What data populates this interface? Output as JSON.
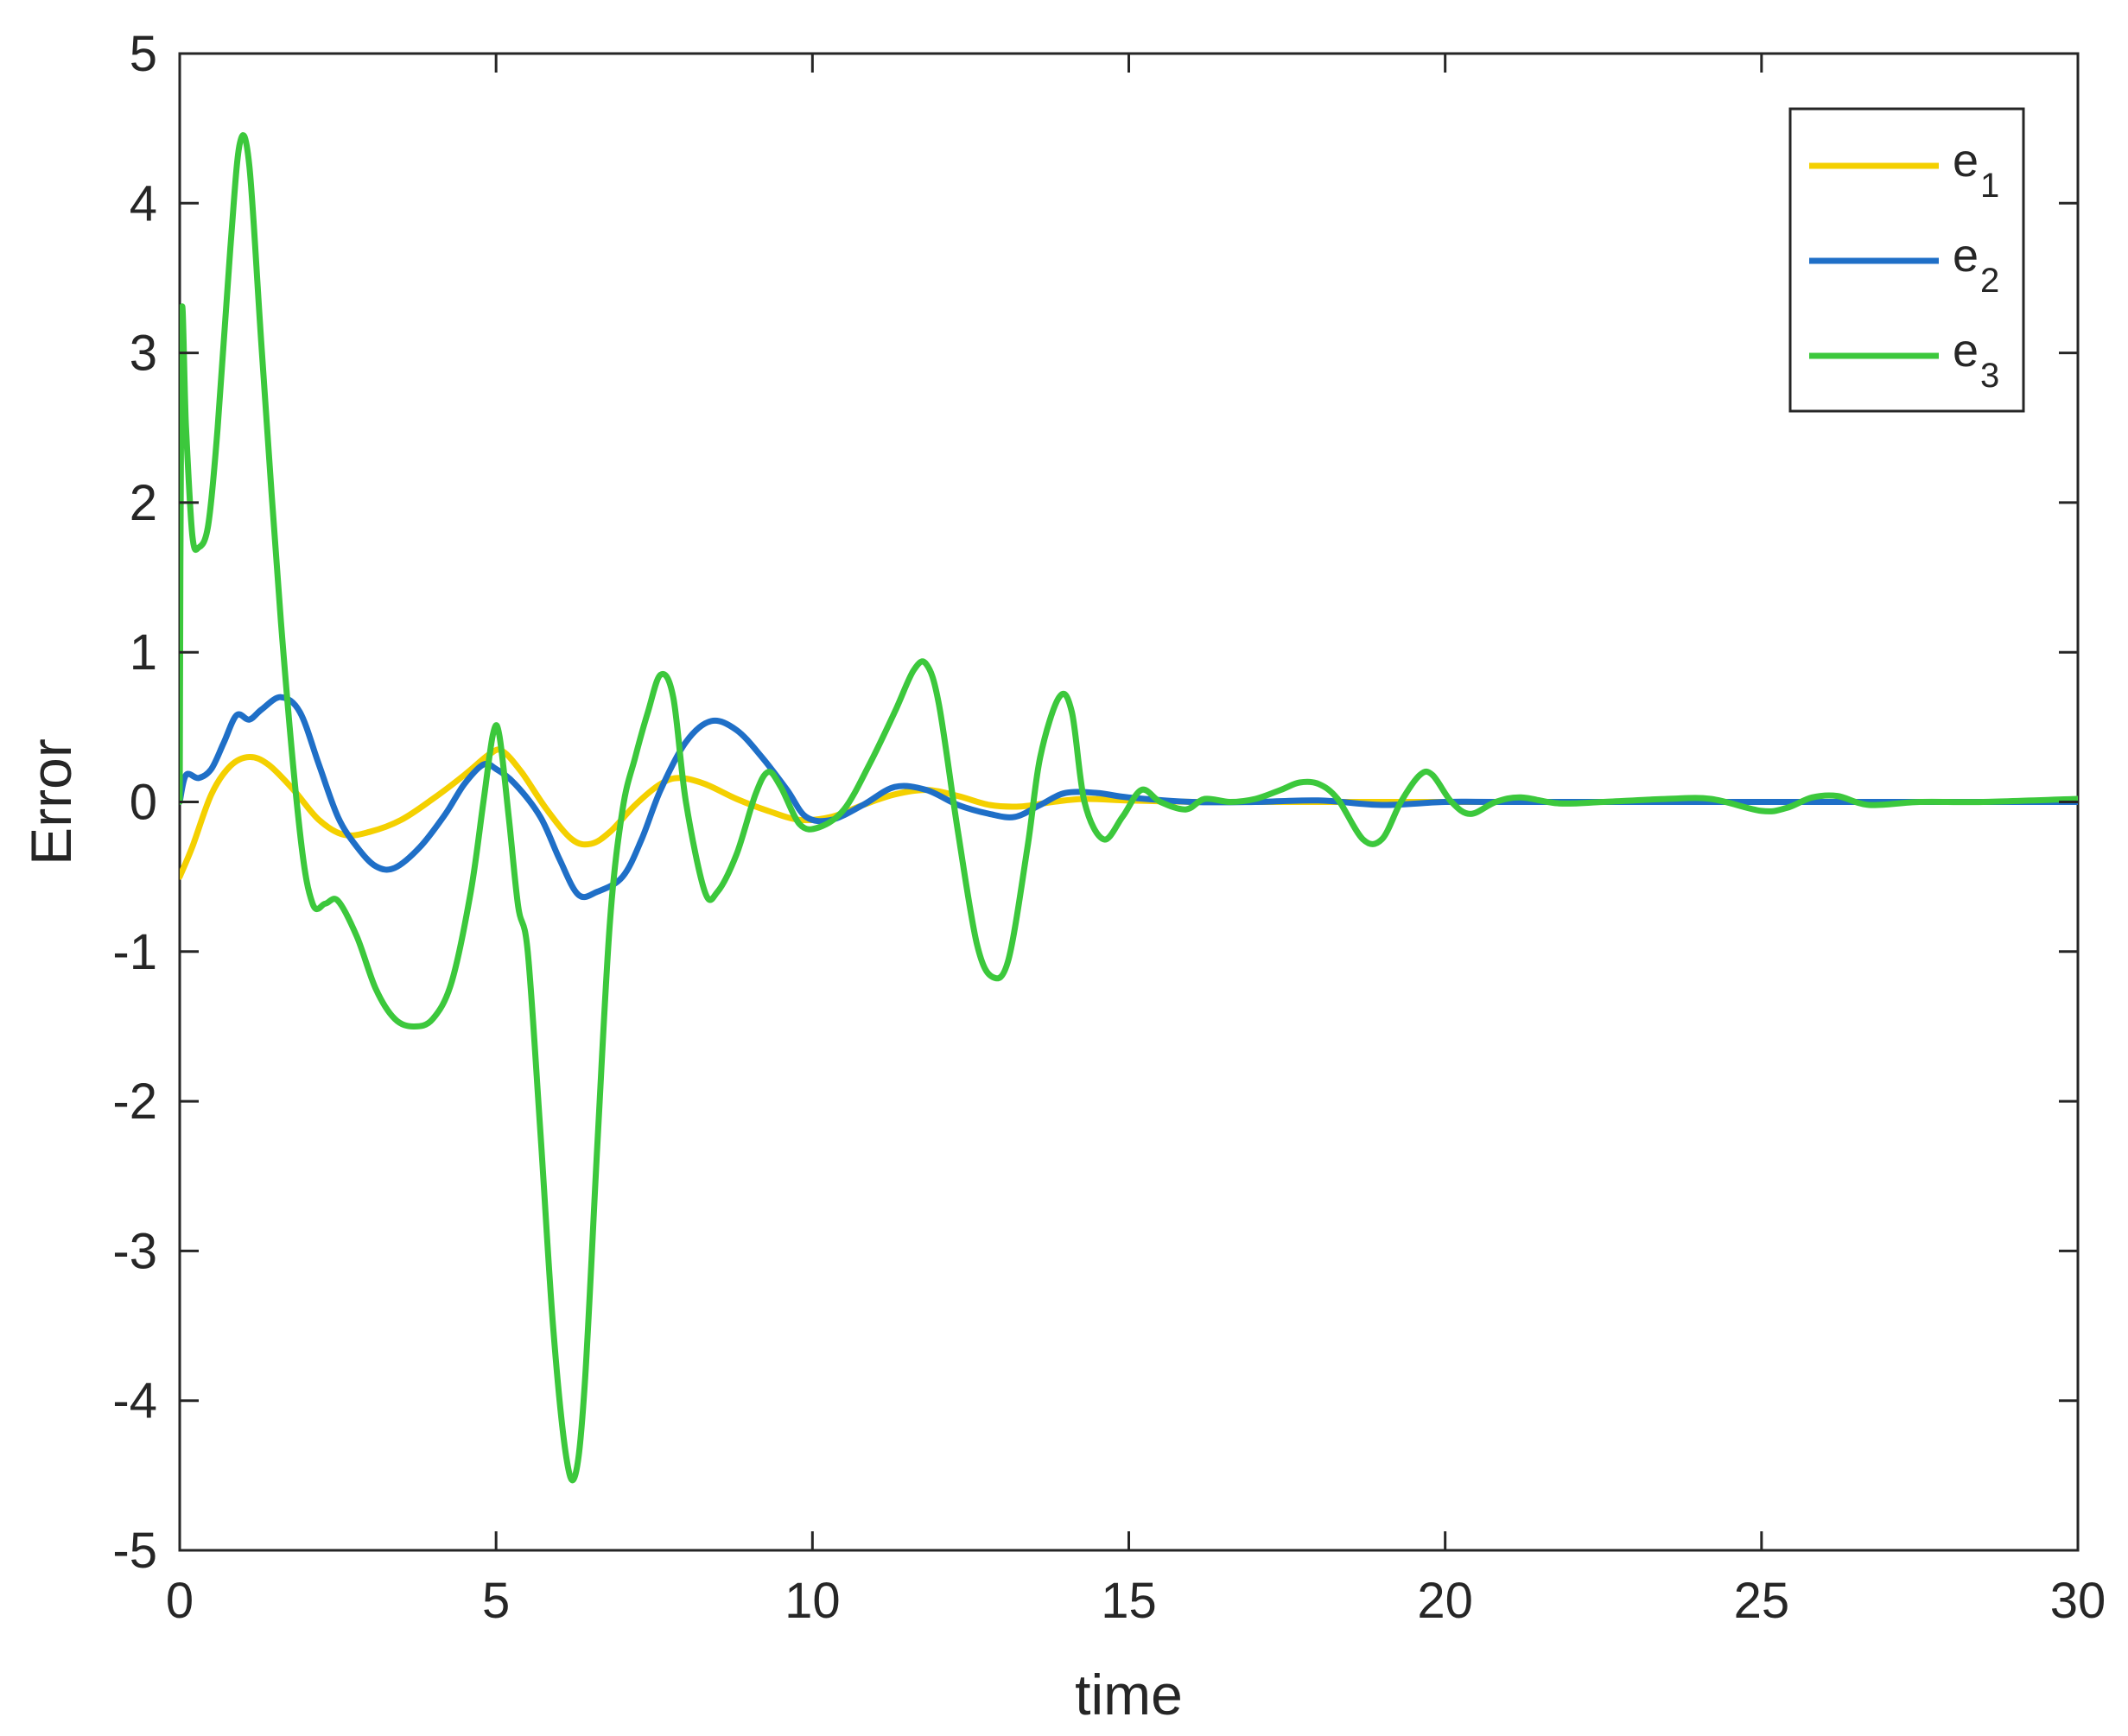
{
  "chart_data": {
    "type": "line",
    "xlabel": "time",
    "ylabel": "Error",
    "xlim": [
      0,
      30
    ],
    "ylim": [
      -5,
      5
    ],
    "xticks": [
      "0",
      "5",
      "10",
      "15",
      "20",
      "25",
      "30"
    ],
    "yticks": [
      "-5",
      "-4",
      "-3",
      "-2",
      "-1",
      "0",
      "1",
      "2",
      "3",
      "4",
      "5"
    ],
    "grid": false,
    "legend_position": "top-right",
    "series": [
      {
        "name": "e1",
        "color": "#f4d000",
        "points": [
          [
            0,
            -0.5
          ],
          [
            0.2,
            -0.3
          ],
          [
            0.5,
            0.05
          ],
          [
            0.8,
            0.24
          ],
          [
            1.1,
            0.3
          ],
          [
            1.4,
            0.25
          ],
          [
            1.8,
            0.08
          ],
          [
            2.2,
            -0.12
          ],
          [
            2.6,
            -0.22
          ],
          [
            3.0,
            -0.2
          ],
          [
            3.5,
            -0.12
          ],
          [
            4.0,
            0.02
          ],
          [
            4.5,
            0.18
          ],
          [
            4.9,
            0.32
          ],
          [
            5.1,
            0.34
          ],
          [
            5.4,
            0.2
          ],
          [
            5.8,
            -0.05
          ],
          [
            6.2,
            -0.25
          ],
          [
            6.5,
            -0.28
          ],
          [
            6.8,
            -0.2
          ],
          [
            7.2,
            -0.02
          ],
          [
            7.6,
            0.12
          ],
          [
            7.9,
            0.16
          ],
          [
            8.3,
            0.12
          ],
          [
            8.8,
            0.02
          ],
          [
            9.3,
            -0.06
          ],
          [
            9.8,
            -0.12
          ],
          [
            10.3,
            -0.1
          ],
          [
            10.8,
            -0.02
          ],
          [
            11.3,
            0.05
          ],
          [
            11.8,
            0.08
          ],
          [
            12.3,
            0.04
          ],
          [
            12.8,
            -0.02
          ],
          [
            13.3,
            -0.03
          ],
          [
            13.8,
            0.0
          ],
          [
            14.3,
            0.02
          ],
          [
            15.0,
            0.01
          ],
          [
            16.0,
            0.0
          ],
          [
            17.0,
            0.0
          ],
          [
            18.0,
            0.0
          ],
          [
            20.0,
            0.0
          ],
          [
            25.0,
            0.0
          ],
          [
            30.0,
            0.0
          ]
        ]
      },
      {
        "name": "e2",
        "color": "#1f6fc7",
        "points": [
          [
            0,
            0.0
          ],
          [
            0.1,
            0.18
          ],
          [
            0.3,
            0.16
          ],
          [
            0.5,
            0.22
          ],
          [
            0.7,
            0.4
          ],
          [
            0.9,
            0.58
          ],
          [
            1.1,
            0.55
          ],
          [
            1.3,
            0.62
          ],
          [
            1.6,
            0.7
          ],
          [
            1.9,
            0.6
          ],
          [
            2.2,
            0.25
          ],
          [
            2.5,
            -0.1
          ],
          [
            2.8,
            -0.3
          ],
          [
            3.1,
            -0.43
          ],
          [
            3.4,
            -0.44
          ],
          [
            3.8,
            -0.3
          ],
          [
            4.2,
            -0.08
          ],
          [
            4.5,
            0.12
          ],
          [
            4.8,
            0.25
          ],
          [
            5.0,
            0.22
          ],
          [
            5.3,
            0.12
          ],
          [
            5.7,
            -0.1
          ],
          [
            6.0,
            -0.38
          ],
          [
            6.3,
            -0.62
          ],
          [
            6.6,
            -0.6
          ],
          [
            7.0,
            -0.5
          ],
          [
            7.3,
            -0.25
          ],
          [
            7.6,
            0.08
          ],
          [
            8.0,
            0.4
          ],
          [
            8.4,
            0.54
          ],
          [
            8.8,
            0.48
          ],
          [
            9.2,
            0.3
          ],
          [
            9.6,
            0.08
          ],
          [
            9.9,
            -0.1
          ],
          [
            10.3,
            -0.12
          ],
          [
            10.8,
            -0.02
          ],
          [
            11.3,
            0.1
          ],
          [
            11.8,
            0.08
          ],
          [
            12.3,
            -0.02
          ],
          [
            12.8,
            -0.08
          ],
          [
            13.2,
            -0.1
          ],
          [
            13.6,
            -0.02
          ],
          [
            14.0,
            0.06
          ],
          [
            14.5,
            0.06
          ],
          [
            15.0,
            0.03
          ],
          [
            16.0,
            0.0
          ],
          [
            17.0,
            0.0
          ],
          [
            18.0,
            0.01
          ],
          [
            19.0,
            -0.02
          ],
          [
            20.0,
            0.0
          ],
          [
            21.0,
            0.0
          ],
          [
            25.0,
            0.0
          ],
          [
            30.0,
            0.0
          ]
        ]
      },
      {
        "name": "e3",
        "color": "#3cc83c",
        "points": [
          [
            0,
            0.0
          ],
          [
            0.03,
            3.2
          ],
          [
            0.1,
            2.5
          ],
          [
            0.2,
            1.78
          ],
          [
            0.3,
            1.7
          ],
          [
            0.45,
            1.85
          ],
          [
            0.6,
            2.5
          ],
          [
            0.8,
            3.7
          ],
          [
            0.95,
            4.4
          ],
          [
            1.1,
            4.25
          ],
          [
            1.3,
            3.0
          ],
          [
            1.6,
            1.2
          ],
          [
            1.9,
            -0.2
          ],
          [
            2.1,
            -0.68
          ],
          [
            2.3,
            -0.68
          ],
          [
            2.5,
            -0.66
          ],
          [
            2.8,
            -0.9
          ],
          [
            3.1,
            -1.25
          ],
          [
            3.4,
            -1.45
          ],
          [
            3.7,
            -1.5
          ],
          [
            4.0,
            -1.45
          ],
          [
            4.3,
            -1.2
          ],
          [
            4.6,
            -0.6
          ],
          [
            4.8,
            0.0
          ],
          [
            4.95,
            0.45
          ],
          [
            5.05,
            0.45
          ],
          [
            5.2,
            -0.1
          ],
          [
            5.35,
            -0.7
          ],
          [
            5.5,
            -1.0
          ],
          [
            5.7,
            -2.2
          ],
          [
            5.9,
            -3.5
          ],
          [
            6.1,
            -4.35
          ],
          [
            6.25,
            -4.5
          ],
          [
            6.4,
            -3.9
          ],
          [
            6.6,
            -2.3
          ],
          [
            6.8,
            -0.8
          ],
          [
            7.0,
            -0.05
          ],
          [
            7.2,
            0.3
          ],
          [
            7.4,
            0.6
          ],
          [
            7.6,
            0.85
          ],
          [
            7.8,
            0.7
          ],
          [
            8.0,
            0.0
          ],
          [
            8.3,
            -0.6
          ],
          [
            8.5,
            -0.6
          ],
          [
            8.8,
            -0.35
          ],
          [
            9.1,
            0.05
          ],
          [
            9.3,
            0.2
          ],
          [
            9.5,
            0.1
          ],
          [
            9.8,
            -0.15
          ],
          [
            10.1,
            -0.17
          ],
          [
            10.5,
            -0.05
          ],
          [
            10.9,
            0.25
          ],
          [
            11.3,
            0.6
          ],
          [
            11.6,
            0.88
          ],
          [
            11.8,
            0.92
          ],
          [
            12.0,
            0.65
          ],
          [
            12.3,
            -0.2
          ],
          [
            12.6,
            -0.95
          ],
          [
            12.85,
            -1.17
          ],
          [
            13.1,
            -1.05
          ],
          [
            13.4,
            -0.3
          ],
          [
            13.6,
            0.3
          ],
          [
            13.9,
            0.7
          ],
          [
            14.1,
            0.6
          ],
          [
            14.3,
            0.0
          ],
          [
            14.6,
            -0.25
          ],
          [
            14.9,
            -0.1
          ],
          [
            15.2,
            0.08
          ],
          [
            15.5,
            0.0
          ],
          [
            15.9,
            -0.05
          ],
          [
            16.2,
            0.02
          ],
          [
            16.6,
            0.0
          ],
          [
            17.0,
            0.02
          ],
          [
            17.4,
            0.08
          ],
          [
            17.7,
            0.13
          ],
          [
            18.0,
            0.12
          ],
          [
            18.3,
            0.02
          ],
          [
            18.7,
            -0.25
          ],
          [
            19.0,
            -0.25
          ],
          [
            19.3,
            0.0
          ],
          [
            19.6,
            0.18
          ],
          [
            19.8,
            0.18
          ],
          [
            20.1,
            0.0
          ],
          [
            20.4,
            -0.08
          ],
          [
            20.8,
            0.0
          ],
          [
            21.2,
            0.03
          ],
          [
            21.8,
            -0.01
          ],
          [
            22.5,
            0.0
          ],
          [
            23.5,
            0.02
          ],
          [
            24.2,
            0.02
          ],
          [
            25.0,
            -0.06
          ],
          [
            25.4,
            -0.04
          ],
          [
            25.8,
            0.03
          ],
          [
            26.2,
            0.04
          ],
          [
            26.7,
            -0.02
          ],
          [
            27.5,
            0.0
          ],
          [
            28.5,
            0.0
          ],
          [
            30.0,
            0.02
          ]
        ]
      }
    ]
  }
}
